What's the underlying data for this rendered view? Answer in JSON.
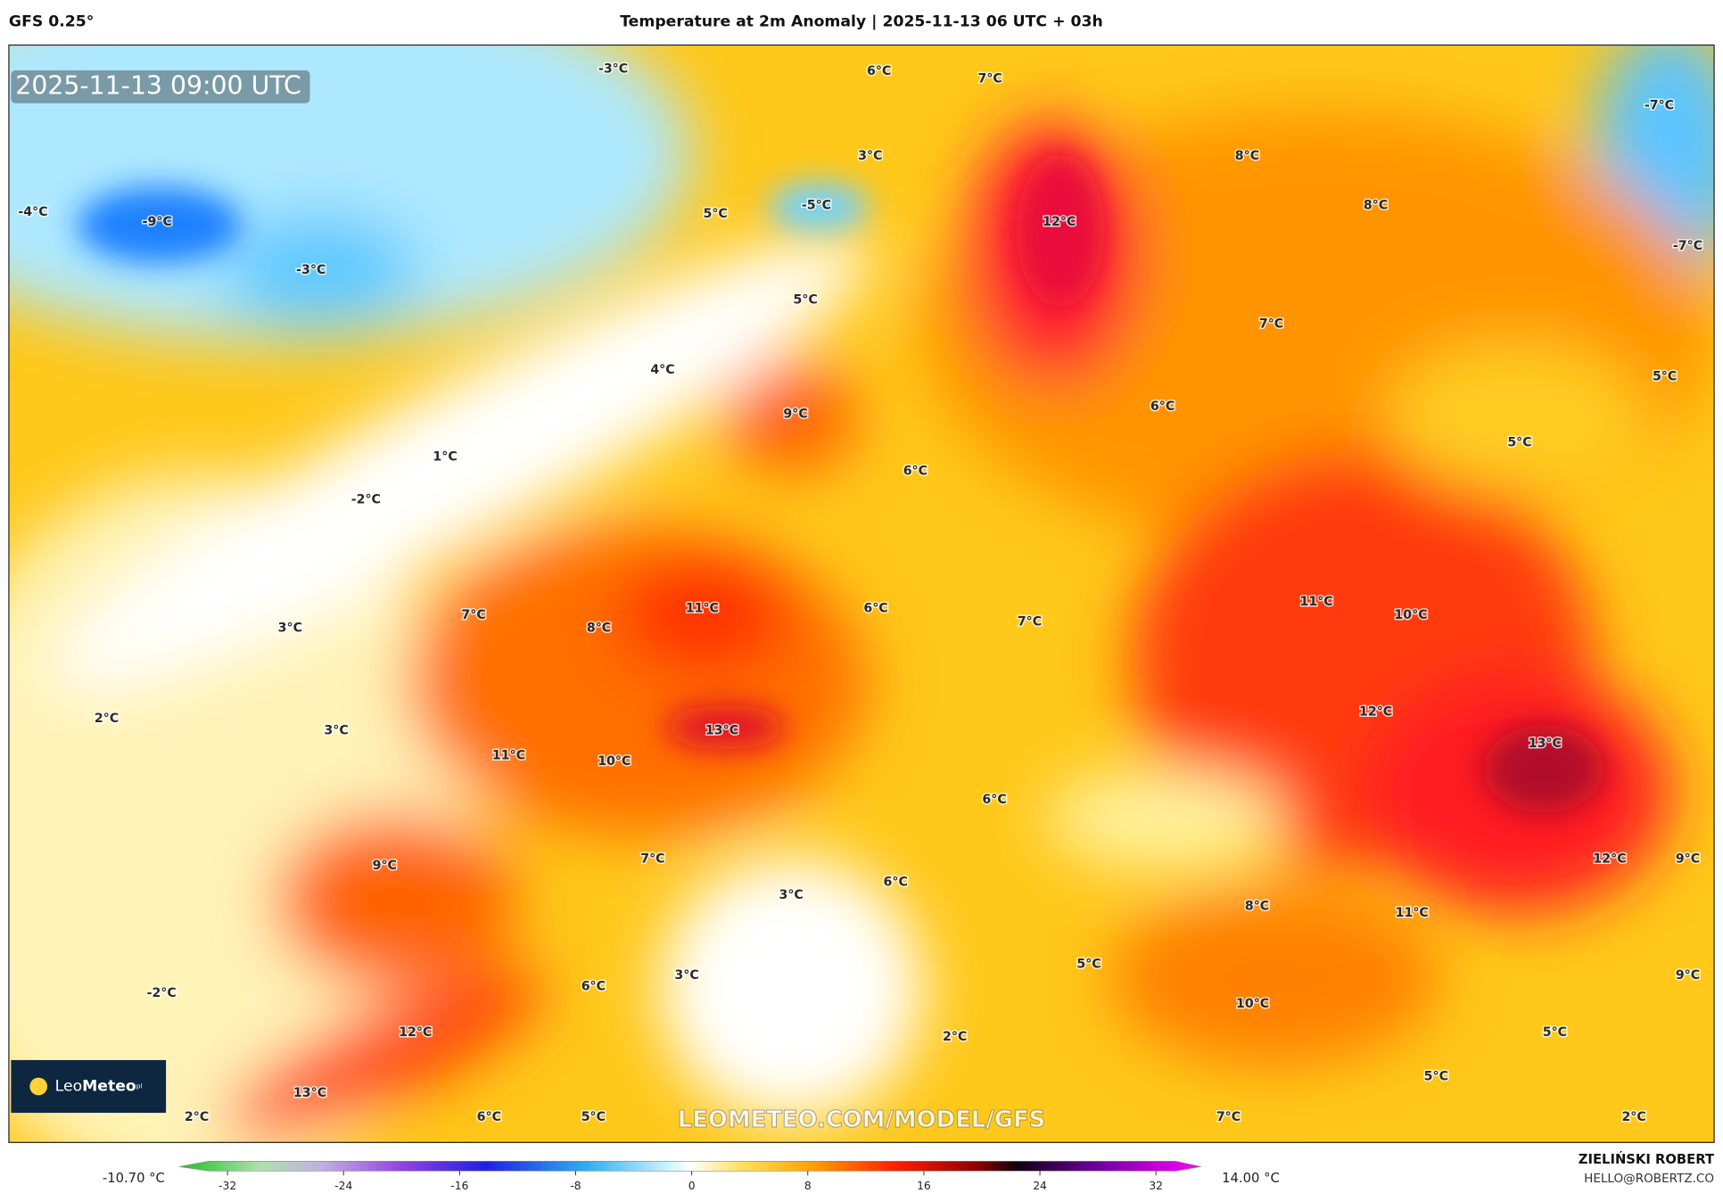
{
  "header": {
    "model": "GFS 0.25°",
    "title": "Temperature at 2m Anomaly | 2025-11-13 06 UTC + 03h"
  },
  "map": {
    "timestamp": "2025-11-13 09:00 UTC",
    "watermark": "LEOMETEO.COM/MODEL/GFS",
    "logo": {
      "prefix": "Leo",
      "brand": "Meteo",
      "suffix": "pl"
    },
    "labels": [
      "-3°C",
      "6°C",
      "7°C",
      "-7°C",
      "3°C",
      "8°C",
      "-9°C",
      "-4°C",
      "-5°C",
      "5°C",
      "12°C",
      "8°C",
      "-7°C",
      "-3°C",
      "5°C",
      "7°C",
      "4°C",
      "5°C",
      "9°C",
      "6°C",
      "5°C",
      "1°C",
      "6°C",
      "-2°C",
      "11°C",
      "6°C",
      "11°C",
      "10°C",
      "7°C",
      "8°C",
      "3°C",
      "7°C",
      "2°C",
      "3°C",
      "13°C",
      "12°C",
      "13°C",
      "11°C",
      "10°C",
      "6°C",
      "9°C",
      "7°C",
      "12°C",
      "9°C",
      "6°C",
      "3°C",
      "8°C",
      "11°C",
      "5°C",
      "3°C",
      "9°C",
      "-2°C",
      "6°C",
      "10°C",
      "12°C",
      "2°C",
      "5°C",
      "13°C",
      "5°C",
      "2°C",
      "6°C",
      "5°C",
      "7°C",
      "2°C"
    ]
  },
  "colorbar": {
    "min_label": "-10.70 °C",
    "max_label": "14.00 °C",
    "ticks": [
      -32,
      -24,
      -16,
      -8,
      0,
      8,
      16,
      24,
      32
    ]
  },
  "credit": {
    "author": "ZIELIŃSKI ROBERT",
    "email": "HELLO@ROBERTZ.CO"
  }
}
